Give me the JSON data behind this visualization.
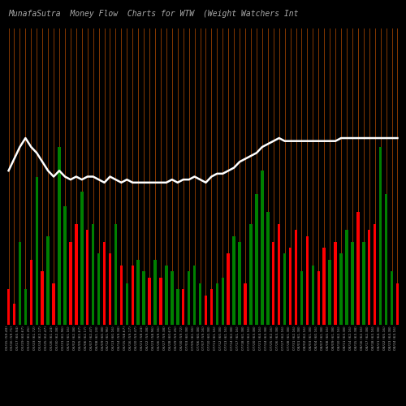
{
  "title_left": "MunafaSutra  Money Flow  Charts for WTW",
  "title_right": "(Weight Watchers Int",
  "bg_color": "#000000",
  "bar_colors": [
    "red",
    "red",
    "green",
    "green",
    "red",
    "green",
    "red",
    "green",
    "red",
    "green",
    "green",
    "red",
    "red",
    "green",
    "red",
    "green",
    "green",
    "red",
    "red",
    "green",
    "red",
    "green",
    "red",
    "green",
    "green",
    "red",
    "green",
    "red",
    "green",
    "green",
    "green",
    "red",
    "green",
    "green",
    "green",
    "red",
    "red",
    "green",
    "green",
    "red",
    "green",
    "green",
    "red",
    "green",
    "green",
    "green",
    "green",
    "red",
    "red",
    "green",
    "red",
    "red",
    "green",
    "red",
    "green",
    "red",
    "red",
    "green",
    "red",
    "green",
    "green",
    "green",
    "red",
    "green",
    "red",
    "red",
    "green",
    "green",
    "green",
    "red"
  ],
  "bar_heights": [
    0.12,
    0.07,
    0.28,
    0.12,
    0.22,
    0.5,
    0.18,
    0.3,
    0.14,
    0.6,
    0.4,
    0.28,
    0.34,
    0.45,
    0.32,
    0.34,
    0.24,
    0.28,
    0.24,
    0.34,
    0.2,
    0.14,
    0.2,
    0.22,
    0.18,
    0.16,
    0.22,
    0.16,
    0.2,
    0.18,
    0.12,
    0.12,
    0.18,
    0.2,
    0.14,
    0.1,
    0.12,
    0.14,
    0.16,
    0.24,
    0.3,
    0.28,
    0.14,
    0.34,
    0.44,
    0.52,
    0.38,
    0.28,
    0.34,
    0.24,
    0.26,
    0.32,
    0.18,
    0.3,
    0.2,
    0.18,
    0.26,
    0.22,
    0.28,
    0.24,
    0.32,
    0.28,
    0.38,
    0.28,
    0.32,
    0.34,
    0.6,
    0.44,
    0.18,
    0.14
  ],
  "price_line_y": [
    0.52,
    0.56,
    0.6,
    0.63,
    0.6,
    0.58,
    0.55,
    0.52,
    0.5,
    0.52,
    0.5,
    0.49,
    0.5,
    0.49,
    0.5,
    0.5,
    0.49,
    0.48,
    0.5,
    0.49,
    0.48,
    0.49,
    0.48,
    0.48,
    0.48,
    0.48,
    0.48,
    0.48,
    0.48,
    0.49,
    0.48,
    0.49,
    0.49,
    0.5,
    0.49,
    0.48,
    0.5,
    0.51,
    0.51,
    0.52,
    0.53,
    0.55,
    0.56,
    0.57,
    0.58,
    0.6,
    0.61,
    0.62,
    0.63,
    0.62,
    0.62,
    0.62,
    0.62,
    0.62,
    0.62,
    0.62,
    0.62,
    0.62,
    0.62,
    0.63,
    0.63,
    0.63,
    0.63,
    0.63,
    0.63,
    0.63,
    0.63,
    0.63,
    0.63,
    0.63
  ],
  "xlabels": [
    "05/15 (59.40)",
    "05/16 (59.71)",
    "05/17 (60.94)",
    "05/19 (60.67)",
    "05/22 (61.26)",
    "05/23 (61.72)",
    "05/24 (62.17)",
    "05/25 (62.47)",
    "05/26 (61.24)",
    "05/30 (62.38)",
    "05/31 (61.96)",
    "06/01 (61.16)",
    "06/02 (62.38)",
    "06/05 (61.67)",
    "06/06 (62.17)",
    "06/07 (62.47)",
    "06/08 (61.24)",
    "06/09 (60.38)",
    "06/12 (61.96)",
    "06/13 (60.16)",
    "06/14 (59.38)",
    "06/15 (58.67)",
    "06/16 (59.17)",
    "06/20 (59.47)",
    "06/21 (58.24)",
    "06/22 (59.38)",
    "06/23 (58.96)",
    "06/26 (59.16)",
    "06/27 (59.38)",
    "06/28 (60.67)",
    "06/29 (59.26)",
    "06/30 (59.72)",
    "07/03 (60.38)",
    "07/05 (61.16)",
    "07/06 (60.38)",
    "07/07 (59.16)",
    "07/10 (60.38)",
    "07/11 (61.16)",
    "07/12 (60.38)",
    "07/13 (61.16)",
    "07/14 (62.38)",
    "07/17 (61.16)",
    "07/18 (61.38)",
    "07/19 (62.16)",
    "07/20 (63.38)",
    "07/21 (64.16)",
    "07/24 (63.38)",
    "07/25 (62.16)",
    "07/26 (63.38)",
    "07/27 (62.16)",
    "07/28 (61.38)",
    "07/31 (62.16)",
    "08/01 (61.38)",
    "08/02 (62.16)",
    "08/03 (61.38)",
    "08/04 (60.16)",
    "08/07 (61.38)",
    "08/08 (60.16)",
    "08/09 (61.38)",
    "08/10 (62.16)",
    "08/11 (63.38)",
    "08/14 (62.16)",
    "08/15 (63.38)",
    "08/16 (62.16)",
    "08/17 (62.38)",
    "08/18 (63.16)",
    "08/21 (64.38)",
    "08/22 (65.16)",
    "08/23 (64.38)",
    "08/24 (63.16)"
  ],
  "orange_line_color": "#cc5500",
  "price_line_color": "#ffffff",
  "title_color": "#aaaaaa",
  "title_fontsize": 7,
  "bar_width": 0.5,
  "ylim": [
    0,
    1.0
  ]
}
